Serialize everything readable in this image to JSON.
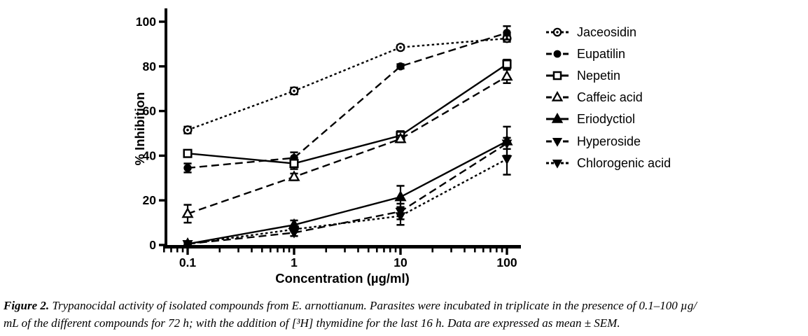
{
  "caption": {
    "label": "Figure 2.",
    "line1": "Trypanocidal activity of isolated compounds from E. arnottianum. Parasites were incubated in triplicate in the presence of 0.1–100 µg/",
    "line2": "mL of the different compounds for 72 h; with the addition of [³H] thymidine for the last 16 h. Data are expressed as mean ± SEM."
  },
  "chart_data": {
    "type": "line",
    "title": "",
    "xlabel": "Concentration (µg/ml)",
    "ylabel": "% Inhibition",
    "x_scale": "log",
    "x": [
      0.1,
      1,
      10,
      100
    ],
    "x_tick_labels": [
      "0.1",
      "1",
      "10",
      "100"
    ],
    "ylim": [
      0,
      100
    ],
    "y_ticks": [
      0,
      20,
      40,
      60,
      80,
      100
    ],
    "grid": false,
    "legend_position": "right",
    "axis_color": "#000000",
    "series": [
      {
        "name": "Jaceosidin",
        "values": [
          51.5,
          69,
          88.5,
          92.5
        ],
        "sem": [
          1.5,
          1.5,
          1,
          1.5
        ],
        "marker": "circle-dot-open",
        "line": "dotted"
      },
      {
        "name": "Eupatilin",
        "values": [
          34.5,
          39,
          80,
          95
        ],
        "sem": [
          2,
          2.5,
          1,
          3
        ],
        "marker": "circle-filled",
        "line": "dashed"
      },
      {
        "name": "Nepetin",
        "values": [
          41,
          36.5,
          49,
          81
        ],
        "sem": [
          1.5,
          2.5,
          2,
          2
        ],
        "marker": "square-open",
        "line": "solid"
      },
      {
        "name": "Caffeic acid",
        "values": [
          14,
          30.5,
          47.5,
          75.5
        ],
        "sem": [
          4,
          1.5,
          1.5,
          3
        ],
        "marker": "triangle-up-open",
        "line": "dashed"
      },
      {
        "name": "Eriodyctiol",
        "values": [
          0.5,
          9,
          21.5,
          46.5
        ],
        "sem": [
          0.5,
          2,
          5,
          6.5
        ],
        "marker": "triangle-up-filled",
        "line": "solid"
      },
      {
        "name": "Hyperoside",
        "values": [
          0.5,
          5.5,
          15,
          45.5
        ],
        "sem": [
          0.5,
          1.5,
          3.5,
          2.5
        ],
        "marker": "triangle-down-filled",
        "line": "dashed"
      },
      {
        "name": "Chlorogenic acid",
        "values": [
          0.5,
          7,
          13,
          38.5
        ],
        "sem": [
          0.5,
          1,
          4,
          7
        ],
        "marker": "triangle-down-filled",
        "line": "dotted"
      }
    ]
  }
}
